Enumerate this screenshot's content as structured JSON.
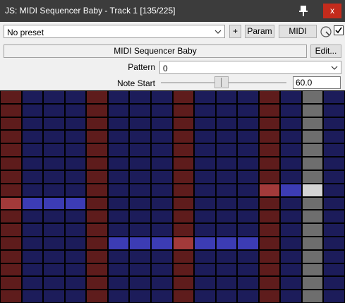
{
  "window": {
    "title": "JS: MIDI Sequencer Baby - Track 1 [135/225]",
    "close_glyph": "x",
    "pin_icon": "pin-icon"
  },
  "toolbar": {
    "preset_value": "No preset",
    "add_label": "+",
    "param_label": "Param",
    "midi_label": "MIDI",
    "knob_icon": "wet-knob-icon",
    "checkbox_checked": true
  },
  "plugin": {
    "name": "MIDI Sequencer Baby",
    "edit_label": "Edit..."
  },
  "controls": {
    "pattern_label": "Pattern",
    "pattern_value": "0",
    "note_start_label": "Note Start",
    "note_start_value": "60.0",
    "note_start_fraction": 0.43
  },
  "sequencer": {
    "columns": 16,
    "rows": 16,
    "playhead_column": 14,
    "beat_columns": [
      0,
      4,
      8,
      12
    ],
    "colors": {
      "background": "#000000",
      "beat_cell": "#5e1c1c",
      "beat_cell_active": "#a23a3a",
      "step_cell": "#1c1c5a",
      "step_cell_active": "#3c3cb4",
      "playhead_cell": "#6e6e6e",
      "playhead_cell_active": "#d4d4d4"
    },
    "active_notes": [
      {
        "row": 7,
        "columns": [
          12,
          13,
          14
        ]
      },
      {
        "row": 8,
        "columns": [
          0,
          1,
          2,
          3
        ]
      },
      {
        "row": 11,
        "columns": [
          5,
          6,
          7,
          8,
          9,
          10,
          11
        ]
      }
    ]
  }
}
